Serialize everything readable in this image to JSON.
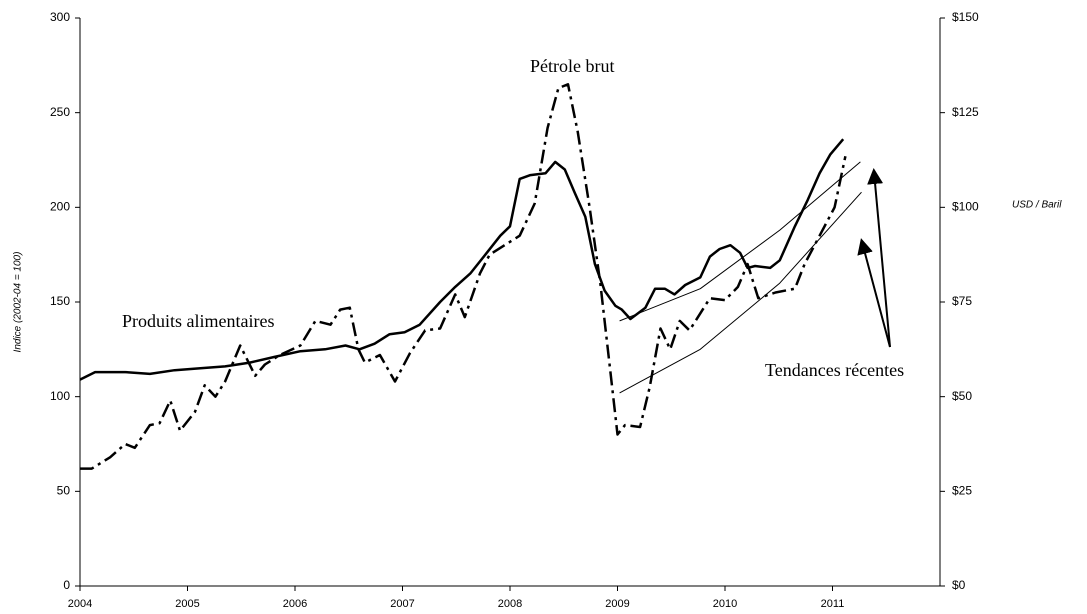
{
  "chart_data": {
    "type": "line",
    "y_label": "Indice (2002-04 = 100)",
    "y2_label": "USD / Baril",
    "xlim": [
      2004,
      2012
    ],
    "xticks": [
      2004,
      2005,
      2006,
      2007,
      2008,
      2009,
      2010,
      2011
    ],
    "ylim": [
      0,
      300
    ],
    "yticks": [
      0,
      50,
      100,
      150,
      200,
      250,
      300
    ],
    "y2lim": [
      0,
      150
    ],
    "y2ticks": [
      {
        "value": 0,
        "label": "$0"
      },
      {
        "value": 25,
        "label": "$25"
      },
      {
        "value": 50,
        "label": "$50"
      },
      {
        "value": 75,
        "label": "$75"
      },
      {
        "value": 100,
        "label": "$100"
      },
      {
        "value": 125,
        "label": "$125"
      },
      {
        "value": 150,
        "label": "$150"
      }
    ],
    "annotation": "Tendances récentes",
    "series": [
      {
        "name": "Produits alimentaires",
        "color": "#000000",
        "style": "solid",
        "x": [
          2004,
          2004.14,
          2004.28,
          2004.42,
          2004.65,
          2004.88,
          2005.12,
          2005.35,
          2005.58,
          2005.81,
          2006.05,
          2006.28,
          2006.47,
          2006.6,
          2006.74,
          2006.88,
          2007.02,
          2007.16,
          2007.35,
          2007.49,
          2007.63,
          2007.77,
          2007.91,
          2008,
          2008.09,
          2008.19,
          2008.33,
          2008.42,
          2008.51,
          2008.6,
          2008.7,
          2008.79,
          2008.88,
          2008.98,
          2009.04,
          2009.12,
          2009.26,
          2009.35,
          2009.44,
          2009.53,
          2009.63,
          2009.77,
          2009.86,
          2009.95,
          2010.05,
          2010.14,
          2010.21,
          2010.28,
          2010.42,
          2010.51,
          2010.65,
          2010.77,
          2010.88,
          2010.98,
          2011.1
        ],
        "values": [
          109,
          113,
          113,
          113,
          112,
          114,
          115,
          116,
          118,
          121,
          124,
          125,
          127,
          125,
          128,
          133,
          134,
          138,
          150,
          158,
          165,
          175,
          185,
          190,
          215,
          217,
          218,
          224,
          220,
          208,
          195,
          170,
          156,
          148,
          146,
          141,
          147,
          157,
          157,
          154,
          159,
          163,
          174,
          178,
          180,
          176,
          168,
          169,
          168,
          172,
          190,
          204,
          218,
          228,
          236
        ]
      },
      {
        "name": "Pétrole brut",
        "color": "#000000",
        "style": "dashdot",
        "axis": "y2",
        "x": [
          2004,
          2004.11,
          2004.28,
          2004.42,
          2004.51,
          2004.65,
          2004.74,
          2004.84,
          2004.93,
          2005.07,
          2005.16,
          2005.26,
          2005.35,
          2005.49,
          2005.63,
          2005.72,
          2005.86,
          2006.05,
          2006.19,
          2006.33,
          2006.42,
          2006.51,
          2006.59,
          2006.65,
          2006.79,
          2006.93,
          2007.07,
          2007.21,
          2007.35,
          2007.49,
          2007.58,
          2007.72,
          2007.81,
          2007.95,
          2008.09,
          2008.23,
          2008.35,
          2008.45,
          2008.54,
          2008.63,
          2008.74,
          2008.84,
          2008.93,
          2009,
          2009.07,
          2009.21,
          2009.3,
          2009.4,
          2009.49,
          2009.58,
          2009.67,
          2009.86,
          2010,
          2010.12,
          2010.21,
          2010.31,
          2010.47,
          2010.65,
          2010.74,
          2010.88,
          2011.02,
          2011.12
        ],
        "values": [
          31,
          31,
          34,
          37.5,
          36.5,
          42.5,
          43,
          49,
          41,
          46,
          53,
          50,
          54,
          63.5,
          55.5,
          58.5,
          61,
          63.5,
          70,
          69,
          73,
          73.5,
          62.5,
          59,
          61,
          54,
          61.5,
          67.5,
          68,
          77,
          71,
          82.5,
          87.5,
          90,
          92.5,
          101,
          121,
          131.5,
          132.5,
          120,
          100,
          80,
          57.5,
          40,
          42.5,
          42,
          52.5,
          68,
          62.5,
          70,
          67.5,
          76,
          75.5,
          79,
          85,
          76,
          77.5,
          78.5,
          85,
          92.5,
          100,
          113.5
        ]
      },
      {
        "color": "#000000",
        "style": "thin",
        "x": [
          2009.02,
          2009.77,
          2010.51,
          2011.26
        ],
        "values": [
          140,
          157,
          188,
          224
        ]
      },
      {
        "color": "#000000",
        "style": "thin",
        "axis": "y2",
        "x": [
          2009.02,
          2009.77,
          2010.51,
          2011.27
        ],
        "values": [
          51,
          62.5,
          80,
          104
        ]
      }
    ]
  }
}
